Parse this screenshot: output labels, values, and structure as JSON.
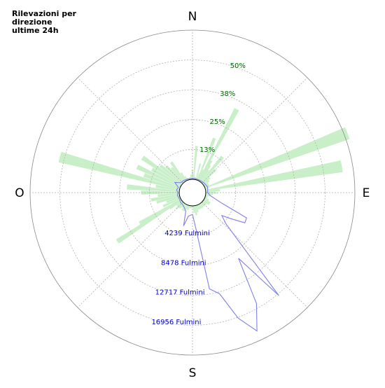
{
  "chart_data": {
    "type": "polar",
    "title": "Rilevazioni per\ndirezione\nultime 24h",
    "directions": [
      "N",
      "E",
      "S",
      "O"
    ],
    "angle_step_deg": 5,
    "percent_series": {
      "name": "",
      "unit": "%",
      "color": "#c8efc8",
      "ticks": [
        "13%",
        "25%",
        "38%",
        "50%"
      ],
      "tick_values": [
        12.5,
        25,
        37.5,
        50
      ],
      "max": 62.5,
      "values": [
        4,
        2,
        1,
        1,
        3,
        5,
        10,
        6,
        14,
        8,
        4,
        3,
        2,
        2,
        2,
        1,
        58,
        6,
        4,
        3,
        2,
        1,
        1,
        2,
        3,
        3,
        2,
        2,
        2,
        2,
        2,
        2,
        2,
        3,
        4,
        3,
        1,
        1,
        1,
        2,
        2,
        3,
        3,
        2,
        3,
        4,
        3,
        6,
        4,
        8,
        6,
        10,
        12,
        9,
        16,
        22,
        10,
        52,
        16,
        20,
        14,
        20,
        12,
        10,
        8,
        10,
        4,
        2,
        1,
        0,
        1,
        2
      ],
      "spikes": [
        {
          "angle": 5,
          "value": 14
        },
        {
          "angle": 15,
          "value": 7
        },
        {
          "angle": 22,
          "value": 19
        },
        {
          "angle": 28,
          "value": 34
        },
        {
          "angle": 33,
          "value": 8
        },
        {
          "angle": 40,
          "value": 9
        },
        {
          "angle": 69,
          "value": 64
        },
        {
          "angle": 91,
          "value": 5
        },
        {
          "angle": 237,
          "value": 32
        },
        {
          "angle": 240,
          "value": 20
        }
      ]
    },
    "count_series": {
      "name": "",
      "unit": "Fulmini",
      "color": "#8080ea",
      "label_color": "#0000cc",
      "ticks": [
        "4239 Fulmini",
        "8478 Fulmini",
        "12717 Fulmini",
        "16956 Fulmini"
      ],
      "tick_values": [
        4239,
        8478,
        12717,
        16956
      ],
      "max": 21195,
      "points": [
        {
          "angle": 0,
          "value": 120
        },
        {
          "angle": 10,
          "value": 150
        },
        {
          "angle": 20,
          "value": 120
        },
        {
          "angle": 30,
          "value": 150
        },
        {
          "angle": 40,
          "value": 180
        },
        {
          "angle": 50,
          "value": 250
        },
        {
          "angle": 60,
          "value": 300
        },
        {
          "angle": 70,
          "value": 400
        },
        {
          "angle": 80,
          "value": 300
        },
        {
          "angle": 90,
          "value": 250
        },
        {
          "angle": 100,
          "value": 700
        },
        {
          "angle": 110,
          "value": 2600
        },
        {
          "angle": 115,
          "value": 6600
        },
        {
          "angle": 120,
          "value": 6700
        },
        {
          "angle": 125,
          "value": 4400
        },
        {
          "angle": 128,
          "value": 3400
        },
        {
          "angle": 133,
          "value": 4600
        },
        {
          "angle": 140,
          "value": 17200
        },
        {
          "angle": 145,
          "value": 9500
        },
        {
          "angle": 150,
          "value": 16300
        },
        {
          "angle": 155,
          "value": 19800
        },
        {
          "angle": 160,
          "value": 17100
        },
        {
          "angle": 165,
          "value": 13000
        },
        {
          "angle": 170,
          "value": 12000
        },
        {
          "angle": 175,
          "value": 3000
        },
        {
          "angle": 180,
          "value": 1200
        },
        {
          "angle": 190,
          "value": 1500
        },
        {
          "angle": 195,
          "value": 3000
        },
        {
          "angle": 200,
          "value": 900
        },
        {
          "angle": 210,
          "value": 500
        },
        {
          "angle": 220,
          "value": 300
        },
        {
          "angle": 230,
          "value": 300
        },
        {
          "angle": 240,
          "value": 200
        },
        {
          "angle": 250,
          "value": 200
        },
        {
          "angle": 260,
          "value": 300
        },
        {
          "angle": 270,
          "value": 200
        },
        {
          "angle": 280,
          "value": 400
        },
        {
          "angle": 290,
          "value": 250
        },
        {
          "angle": 300,
          "value": 1000
        },
        {
          "angle": 310,
          "value": 300
        },
        {
          "angle": 320,
          "value": 250
        },
        {
          "angle": 330,
          "value": 200
        },
        {
          "angle": 340,
          "value": 150
        },
        {
          "angle": 350,
          "value": 120
        },
        {
          "angle": 360,
          "value": 120
        }
      ]
    },
    "grid": true,
    "grid_color": "#b0b0b0"
  }
}
